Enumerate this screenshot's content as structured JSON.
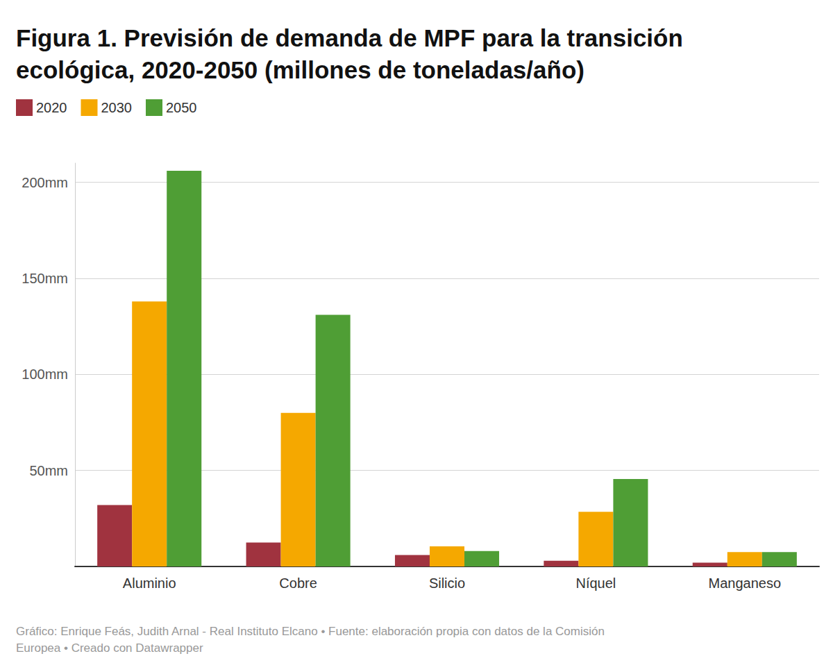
{
  "chart_data": {
    "type": "bar",
    "title": "Figura 1. Previsión de demanda de MPF para la transición ecológica, 2020-2050 (millones de toneladas/año)",
    "source": "Gráfico: Enrique Feás, Judith Arnal - Real Instituto Elcano • Fuente: elaboración propia con datos de la Comisión Europea • Creado con Datawrapper",
    "categories": [
      "Aluminio",
      "Cobre",
      "Silicio",
      "Níquel",
      "Manganeso"
    ],
    "series": [
      {
        "name": "2020",
        "color": "#a0333f",
        "values": [
          32,
          12.5,
          6,
          3,
          2
        ]
      },
      {
        "name": "2030",
        "color": "#f5a800",
        "values": [
          138,
          80,
          10.5,
          28.5,
          7.5
        ]
      },
      {
        "name": "2050",
        "color": "#4f9e35",
        "values": [
          206,
          131,
          8,
          45.5,
          7.5
        ]
      }
    ],
    "ylim": [
      0,
      210
    ],
    "yticks": [
      {
        "value": 50,
        "label": "50mm"
      },
      {
        "value": 100,
        "label": "100mm"
      },
      {
        "value": 150,
        "label": "150mm"
      },
      {
        "value": 200,
        "label": "200mm"
      }
    ],
    "grid": true,
    "legend": "top-left"
  }
}
